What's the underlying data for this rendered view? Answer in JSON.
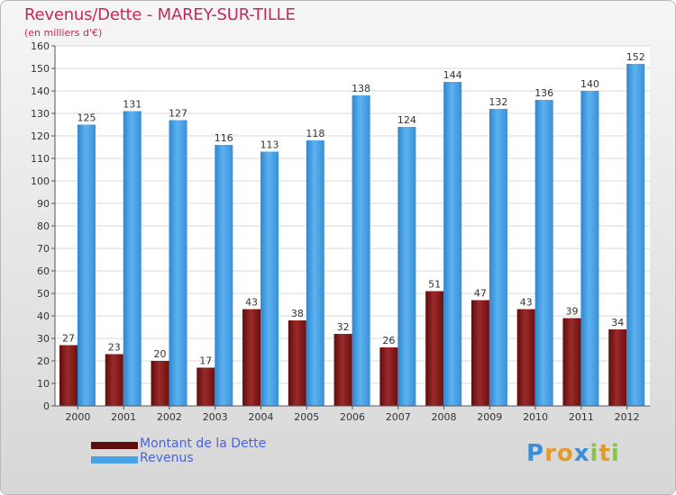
{
  "chart_data": {
    "type": "bar",
    "title": "Revenus/Dette - MAREY-SUR-TILLE",
    "subtitle": "(en milliers d'€)",
    "categories": [
      "2000",
      "2001",
      "2002",
      "2003",
      "2004",
      "2005",
      "2006",
      "2007",
      "2008",
      "2009",
      "2010",
      "2011",
      "2012"
    ],
    "series": [
      {
        "name": "Montant de la Dette",
        "color": "#8b1a1a",
        "values": [
          27,
          23,
          20,
          17,
          43,
          38,
          32,
          26,
          51,
          47,
          43,
          39,
          34
        ]
      },
      {
        "name": "Revenus",
        "color": "#4aa3e6",
        "values": [
          125,
          131,
          127,
          116,
          113,
          118,
          138,
          124,
          144,
          132,
          136,
          140,
          152
        ]
      }
    ],
    "ylim": [
      0,
      160
    ],
    "yticks": [
      0,
      10,
      20,
      30,
      40,
      50,
      60,
      70,
      80,
      90,
      100,
      110,
      120,
      130,
      140,
      150,
      160
    ],
    "grid": true,
    "legend": "bottom-left"
  },
  "logo": {
    "text": "Proxiti",
    "letters": [
      "P",
      "r",
      "o",
      "x",
      "i",
      "t",
      "i"
    ],
    "colors": [
      "#3a8fd8",
      "#e69a2a",
      "#e69a2a",
      "#3a8fd8",
      "#8bc34a",
      "#e69a2a",
      "#8bc34a"
    ]
  }
}
